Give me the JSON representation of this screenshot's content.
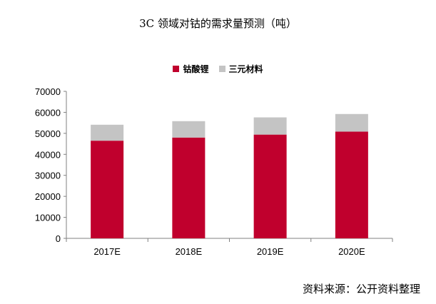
{
  "chart_data": {
    "type": "bar",
    "stacked": true,
    "title": "3C 领域对钴的需求量预测（吨）",
    "categories": [
      "2017E",
      "2018E",
      "2019E",
      "2020E"
    ],
    "series": [
      {
        "name": "钴酸锂",
        "color": "#c0002d",
        "values": [
          46500,
          48000,
          49400,
          50800
        ]
      },
      {
        "name": "三元材料",
        "color": "#c4c4c4",
        "values": [
          7600,
          7800,
          8200,
          8400
        ]
      }
    ],
    "xlabel": "",
    "ylabel": "",
    "ylim": [
      0,
      70000
    ],
    "yticks": [
      "0",
      "10000",
      "20000",
      "30000",
      "40000",
      "50000",
      "60000",
      "70000"
    ],
    "grid": false,
    "legend_position": "top"
  },
  "source_note": "资料来源：公开资料整理"
}
